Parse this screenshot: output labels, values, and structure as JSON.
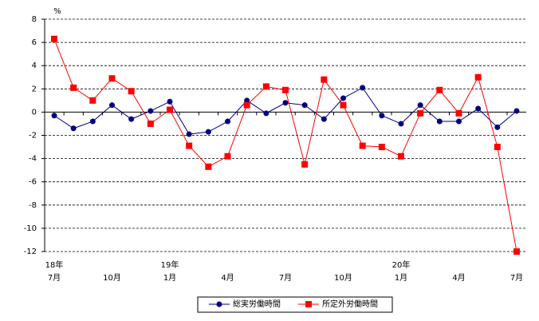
{
  "chart_data": {
    "type": "line",
    "unit": "%",
    "categories": [
      "7月",
      null,
      null,
      "10月",
      null,
      null,
      "1月",
      null,
      null,
      "4月",
      null,
      null,
      "7月",
      null,
      null,
      "10月",
      null,
      null,
      "1月",
      null,
      null,
      "4月",
      null,
      null,
      "7月"
    ],
    "category_years": [
      "18年",
      null,
      null,
      null,
      null,
      null,
      "19年",
      null,
      null,
      null,
      null,
      null,
      null,
      null,
      null,
      null,
      null,
      null,
      "20年",
      null,
      null,
      null,
      null,
      null,
      null
    ],
    "series": [
      {
        "name": "総実労働時間",
        "color": "#000080",
        "marker": "circle",
        "values": [
          -0.3,
          -1.4,
          -0.8,
          0.6,
          -0.6,
          0.1,
          0.9,
          -1.9,
          -1.7,
          -0.8,
          1.0,
          -0.1,
          0.8,
          0.6,
          -0.6,
          1.2,
          2.1,
          -0.3,
          -1.0,
          0.6,
          -0.8,
          -0.8,
          0.3,
          -1.3,
          0.1
        ]
      },
      {
        "name": "所定外労働時間",
        "color": "#ff0000",
        "marker": "square",
        "values": [
          6.3,
          2.1,
          1.0,
          2.9,
          1.8,
          -1.0,
          0.2,
          -2.9,
          -4.7,
          -3.8,
          0.6,
          2.2,
          1.9,
          -4.5,
          2.8,
          0.6,
          -2.9,
          -3.0,
          -3.8,
          -0.1,
          1.9,
          -0.1,
          3.0,
          -3.0,
          -12.0
        ]
      }
    ],
    "ylim": [
      -12,
      8
    ],
    "yticks": [
      -12,
      -10,
      -8,
      -6,
      -4,
      -2,
      0,
      2,
      4,
      6,
      8
    ],
    "grid": true
  }
}
